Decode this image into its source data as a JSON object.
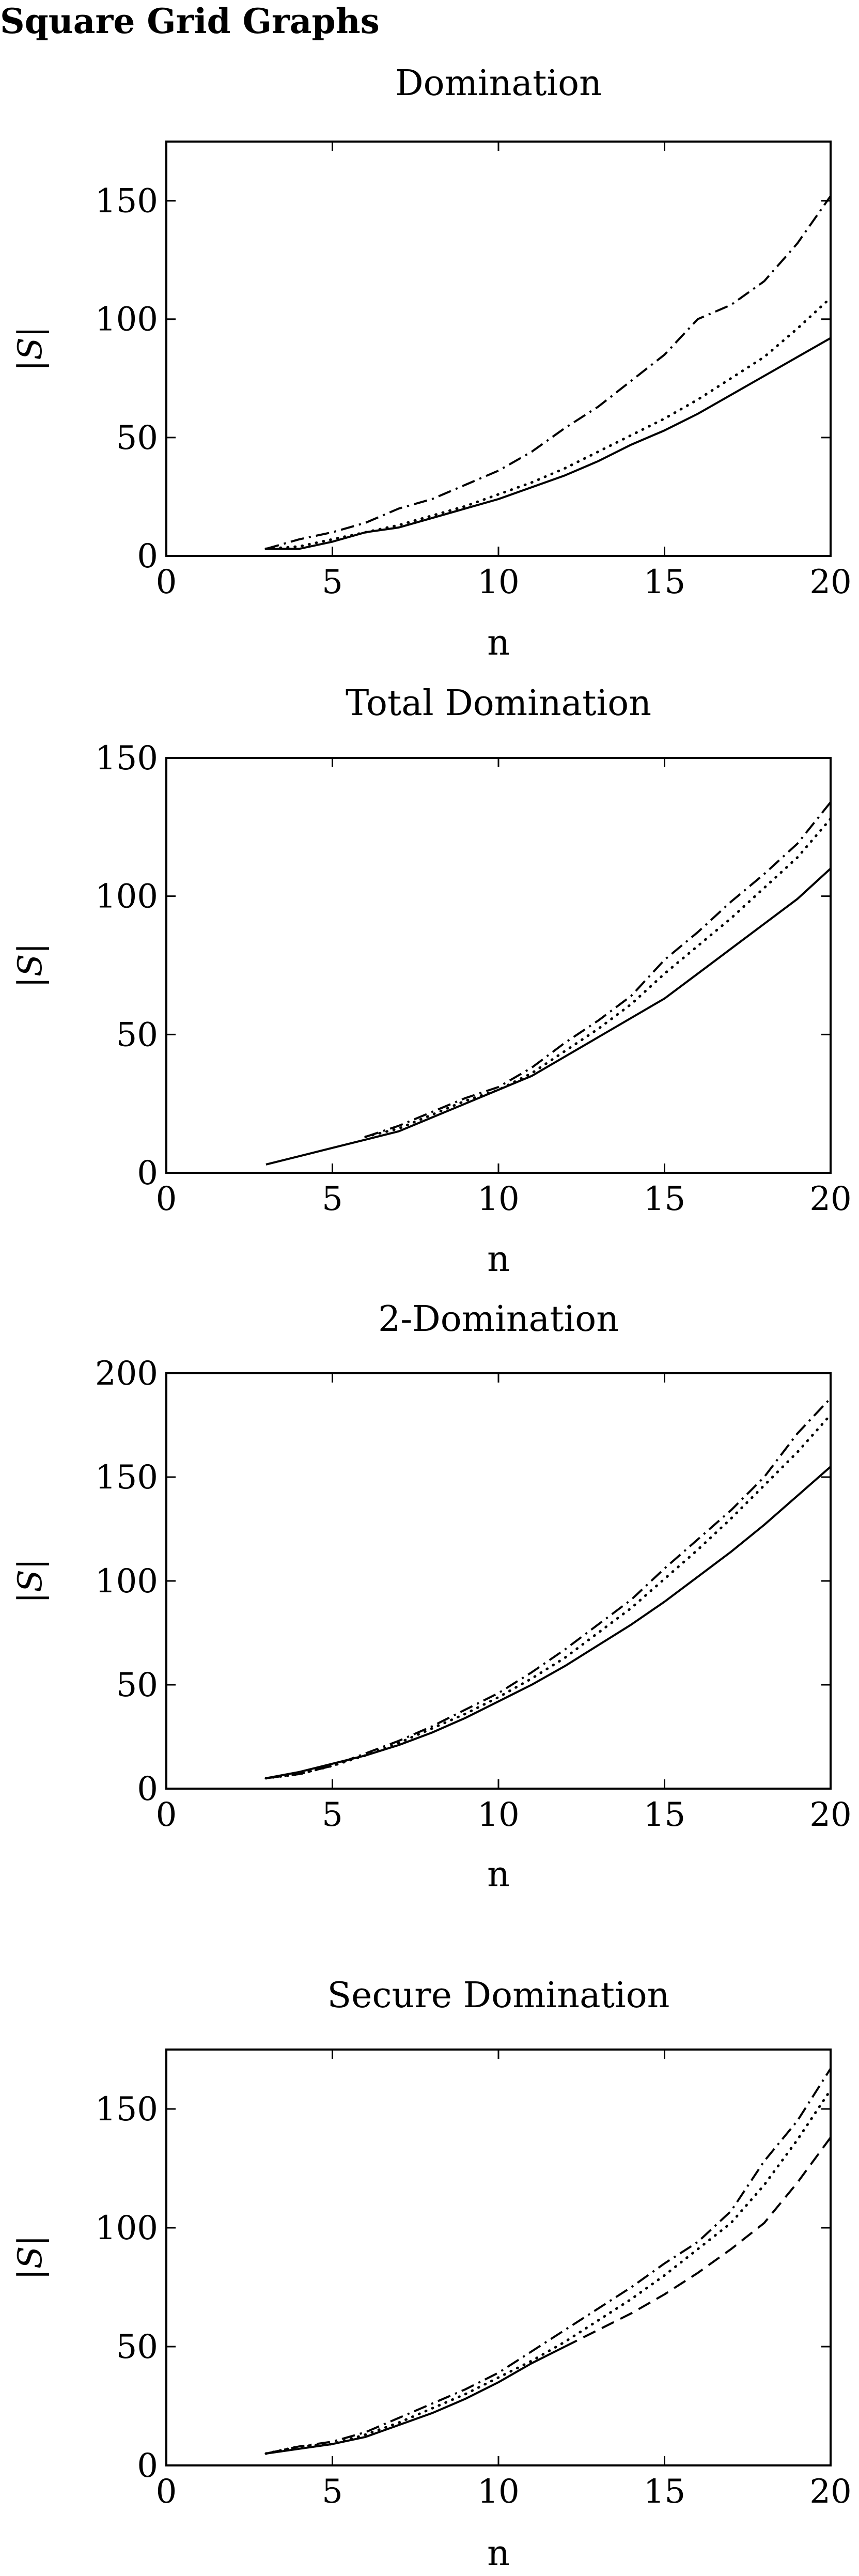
{
  "page": {
    "title": "Square Grid Graphs"
  },
  "chart_data": [
    {
      "type": "line",
      "title": "Domination",
      "xlabel": "n",
      "ylabel": "|S|",
      "xlim": [
        0,
        20
      ],
      "ylim": [
        0,
        175
      ],
      "xticks": [
        0,
        5,
        10,
        15,
        20
      ],
      "yticks": [
        0,
        50,
        100,
        150
      ],
      "grid": false,
      "series": [
        {
          "style": "dashdot",
          "x": [
            3,
            4,
            5,
            6,
            7,
            8,
            9,
            10,
            11,
            12,
            13,
            14,
            15,
            16,
            17,
            18,
            19,
            20
          ],
          "values": [
            3,
            7,
            10,
            14,
            20,
            24,
            30,
            36,
            44,
            54,
            63,
            74,
            85,
            100,
            106,
            116,
            132,
            152
          ]
        },
        {
          "style": "dotted",
          "x": [
            3,
            4,
            5,
            6,
            7,
            8,
            9,
            10,
            11,
            12,
            13,
            14,
            15,
            16,
            17,
            18,
            19,
            20
          ],
          "values": [
            3,
            4,
            7,
            10,
            13,
            17,
            21,
            26,
            31,
            37,
            44,
            51,
            58,
            66,
            75,
            84,
            96,
            109
          ]
        },
        {
          "style": "solid",
          "x": [
            3,
            4,
            5,
            6,
            7,
            8,
            9,
            10,
            11,
            12,
            13,
            14,
            15,
            16,
            17,
            18,
            19,
            20
          ],
          "values": [
            3,
            3,
            6,
            10,
            12,
            16,
            20,
            24,
            29,
            34,
            40,
            47,
            53,
            60,
            68,
            76,
            84,
            92
          ]
        }
      ]
    },
    {
      "type": "line",
      "title": "Total Domination",
      "xlabel": "n",
      "ylabel": "|S|",
      "xlim": [
        0,
        20
      ],
      "ylim": [
        0,
        150
      ],
      "xticks": [
        0,
        5,
        10,
        15,
        20
      ],
      "yticks": [
        0,
        50,
        100,
        150
      ],
      "grid": false,
      "series": [
        {
          "style": "dashdot",
          "x": [
            6,
            7,
            8,
            9,
            10,
            11,
            12,
            13,
            14,
            15,
            16,
            17,
            18,
            19,
            20
          ],
          "values": [
            13,
            17,
            22,
            27,
            31,
            38,
            47,
            55,
            64,
            77,
            87,
            98,
            108,
            119,
            134
          ]
        },
        {
          "style": "dotted",
          "x": [
            6,
            7,
            8,
            9,
            10,
            11,
            12,
            13,
            14,
            15,
            16,
            17,
            18,
            19,
            20
          ],
          "values": [
            13,
            16,
            21,
            26,
            30,
            36,
            44,
            52,
            61,
            72,
            82,
            92,
            103,
            114,
            128
          ]
        },
        {
          "style": "solid",
          "x": [
            3,
            4,
            5,
            6,
            7,
            8,
            9,
            10,
            11,
            12,
            13,
            14,
            15,
            16,
            17,
            18,
            19,
            20
          ],
          "values": [
            3,
            6,
            9,
            12,
            15,
            20,
            25,
            30,
            35,
            42,
            49,
            56,
            63,
            72,
            81,
            90,
            99,
            110
          ]
        }
      ]
    },
    {
      "type": "line",
      "title": "2-Domination",
      "xlabel": "n",
      "ylabel": "|S|",
      "xlim": [
        0,
        20
      ],
      "ylim": [
        0,
        200
      ],
      "xticks": [
        0,
        5,
        10,
        15,
        20
      ],
      "yticks": [
        0,
        50,
        100,
        150,
        200
      ],
      "grid": false,
      "series": [
        {
          "style": "dashdot",
          "x": [
            3,
            4,
            5,
            6,
            7,
            8,
            9,
            10,
            11,
            12,
            13,
            14,
            15,
            16,
            17,
            18,
            19,
            20
          ],
          "values": [
            5,
            7,
            11,
            17,
            23,
            30,
            38,
            46,
            56,
            67,
            79,
            91,
            106,
            120,
            134,
            150,
            171,
            188
          ]
        },
        {
          "style": "dotted",
          "x": [
            3,
            4,
            5,
            6,
            7,
            8,
            9,
            10,
            11,
            12,
            13,
            14,
            15,
            16,
            17,
            18,
            19,
            20
          ],
          "values": [
            5,
            7,
            11,
            16,
            22,
            29,
            36,
            44,
            53,
            63,
            75,
            87,
            101,
            115,
            130,
            146,
            162,
            180
          ]
        },
        {
          "style": "solid",
          "x": [
            3,
            4,
            5,
            6,
            7,
            8,
            9,
            10,
            11,
            12,
            13,
            14,
            15,
            16,
            17,
            18,
            19,
            20
          ],
          "values": [
            5,
            8,
            12,
            16,
            21,
            27,
            34,
            42,
            50,
            59,
            69,
            79,
            90,
            102,
            114,
            127,
            141,
            155
          ]
        }
      ]
    },
    {
      "type": "line",
      "title": "Secure Domination",
      "xlabel": "n",
      "ylabel": "|S|",
      "xlim": [
        0,
        20
      ],
      "ylim": [
        0,
        175
      ],
      "xticks": [
        0,
        5,
        10,
        15,
        20
      ],
      "yticks": [
        0,
        50,
        100,
        150
      ],
      "grid": false,
      "series": [
        {
          "style": "dashdot",
          "x": [
            3,
            4,
            5,
            6,
            7,
            8,
            9,
            10,
            11,
            12,
            13,
            14,
            15,
            16,
            17,
            18,
            19,
            20
          ],
          "values": [
            5,
            8,
            10,
            14,
            20,
            26,
            32,
            39,
            48,
            57,
            66,
            75,
            85,
            94,
            107,
            128,
            145,
            167
          ]
        },
        {
          "style": "dotted",
          "x": [
            3,
            4,
            5,
            6,
            7,
            8,
            9,
            10,
            11,
            12,
            13,
            14,
            15,
            16,
            17,
            18,
            19,
            20
          ],
          "values": [
            5,
            8,
            9,
            13,
            18,
            24,
            30,
            37,
            44,
            52,
            61,
            70,
            80,
            91,
            102,
            118,
            137,
            158
          ]
        },
        {
          "style": "dashed",
          "x": [
            12,
            13,
            14,
            15,
            16,
            17,
            18,
            19,
            20
          ],
          "values": [
            50,
            57,
            64,
            72,
            81,
            91,
            102,
            119,
            138
          ]
        },
        {
          "style": "solid",
          "x": [
            3,
            4,
            5,
            6,
            7,
            8,
            9,
            10,
            11,
            12
          ],
          "values": [
            5,
            7,
            9,
            12,
            17,
            22,
            28,
            35,
            43,
            50
          ]
        }
      ]
    }
  ]
}
